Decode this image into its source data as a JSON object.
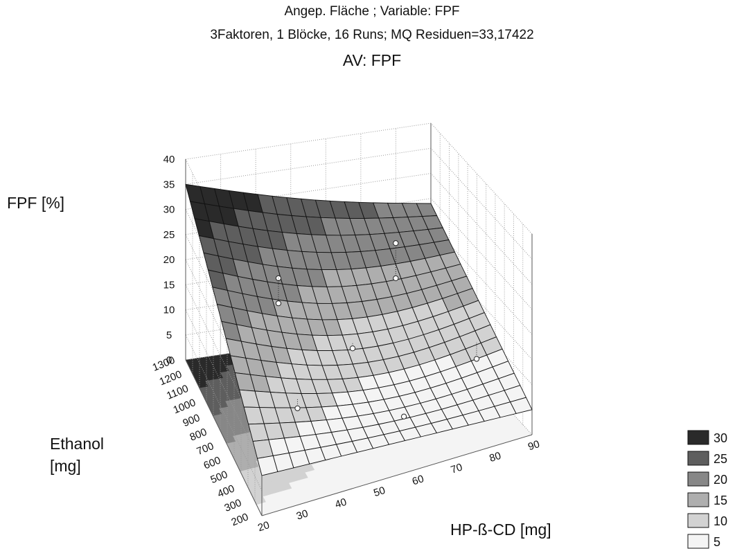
{
  "chart_data": {
    "type": "surface3d",
    "title": "Angep. Fläche ; Variable: FPF",
    "subtitle": "3Faktoren, 1 Blöcke, 16 Runs; MQ Residuen=33,17422",
    "dependent_variable": "AV: FPF",
    "zlabel": "FPF [%]",
    "ylabel": [
      "Ethanol",
      "[mg]"
    ],
    "xlabel": "HP-ß-CD [mg]",
    "x_ticks": [
      "20",
      "30",
      "40",
      "50",
      "60",
      "70",
      "80",
      "90"
    ],
    "y_ticks": [
      "200",
      "300",
      "400",
      "500",
      "600",
      "700",
      "800",
      "900",
      "1000",
      "1100",
      "1200",
      "1300"
    ],
    "z_ticks": [
      "0",
      "5",
      "10",
      "15",
      "20",
      "25",
      "30",
      "35",
      "40"
    ],
    "xlim": [
      20,
      90
    ],
    "ylim": [
      200,
      1300
    ],
    "zlim": [
      0,
      40
    ],
    "surface_corners": {
      "x20_y200": 8,
      "x90_y200": 5,
      "x20_y1300": 35,
      "x90_y1300": 24
    },
    "data_points": [
      {
        "x": 40,
        "y": 1000,
        "z": 22
      },
      {
        "x": 40,
        "y": 1000,
        "z": 17
      },
      {
        "x": 75,
        "y": 1100,
        "z": 22
      },
      {
        "x": 75,
        "y": 1100,
        "z": 15
      },
      {
        "x": 55,
        "y": 750,
        "z": 12
      },
      {
        "x": 35,
        "y": 500,
        "z": 10
      },
      {
        "x": 85,
        "y": 600,
        "z": 8
      },
      {
        "x": 60,
        "y": 350,
        "z": 7
      }
    ],
    "legend": {
      "position": "bottom-right",
      "entries": [
        {
          "label": "30",
          "color": "#2a2a2a"
        },
        {
          "label": "25",
          "color": "#5e5e5e"
        },
        {
          "label": "20",
          "color": "#878787"
        },
        {
          "label": "15",
          "color": "#aeaeae"
        },
        {
          "label": "10",
          "color": "#d2d2d2"
        },
        {
          "label": "5",
          "color": "#f4f4f4"
        }
      ]
    },
    "grid": true
  }
}
